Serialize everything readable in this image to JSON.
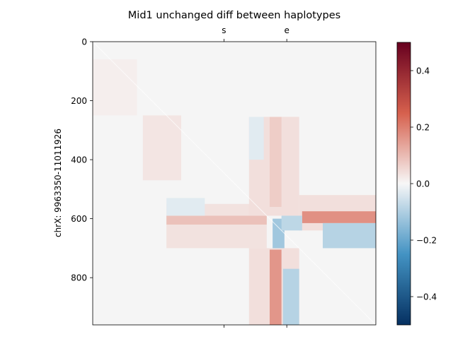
{
  "chart_data": {
    "type": "heatmap",
    "title": "Mid1 unchanged diff between haplotypes",
    "ylabel": "chrX: 9963350-11011926",
    "xlabel": "",
    "matrix_size": 960,
    "yticks": [
      {
        "value": 0,
        "label": "0"
      },
      {
        "value": 200,
        "label": "200"
      },
      {
        "value": 400,
        "label": "400"
      },
      {
        "value": 600,
        "label": "600"
      },
      {
        "value": 800,
        "label": "800"
      }
    ],
    "top_markers": [
      {
        "label": "s",
        "value": 445
      },
      {
        "label": "e",
        "value": 658
      }
    ],
    "bottom_markers": [
      {
        "value": 445
      },
      {
        "value": 658
      }
    ],
    "colorbar": {
      "colormap": "RdBu_r",
      "min": -0.5,
      "max": 0.5,
      "ticks": [
        {
          "value": 0.4,
          "label": "0.4"
        },
        {
          "value": 0.2,
          "label": "0.2"
        },
        {
          "value": 0.0,
          "label": "0.0"
        },
        {
          "value": -0.2,
          "label": "−0.2"
        },
        {
          "value": -0.4,
          "label": "−0.4"
        }
      ]
    },
    "colors": {
      "background_cell": "#f5f5f5",
      "red_strong": "#67001f",
      "red_mid": "#d6604d",
      "white": "#f7f7f7",
      "blue_mid": "#4393c3",
      "blue_strong": "#053061"
    },
    "regions": [
      {
        "r0": 0,
        "r1": 960,
        "c0": 0,
        "c1": 960,
        "v": 0.0
      },
      {
        "r0": 250,
        "r1": 470,
        "c0": 170,
        "c1": 300,
        "v": 0.03
      },
      {
        "r0": 60,
        "r1": 250,
        "c0": 0,
        "c1": 150,
        "v": 0.015
      },
      {
        "r0": 550,
        "r1": 700,
        "c0": 250,
        "c1": 590,
        "v": 0.035
      },
      {
        "r0": 590,
        "r1": 620,
        "c0": 250,
        "c1": 590,
        "v": 0.09
      },
      {
        "r0": 530,
        "r1": 590,
        "c0": 250,
        "c1": 380,
        "v": -0.03
      },
      {
        "r0": 255,
        "r1": 590,
        "c0": 530,
        "c1": 700,
        "v": 0.04
      },
      {
        "r0": 255,
        "r1": 560,
        "c0": 600,
        "c1": 640,
        "v": 0.07
      },
      {
        "r0": 255,
        "r1": 400,
        "c0": 530,
        "c1": 580,
        "v": -0.03
      },
      {
        "r0": 520,
        "r1": 640,
        "c0": 700,
        "c1": 960,
        "v": 0.04
      },
      {
        "r0": 575,
        "r1": 615,
        "c0": 710,
        "c1": 960,
        "v": 0.17
      },
      {
        "r0": 615,
        "r1": 700,
        "c0": 780,
        "c1": 960,
        "v": -0.09
      },
      {
        "r0": 700,
        "r1": 960,
        "c0": 530,
        "c1": 700,
        "v": 0.04
      },
      {
        "r0": 705,
        "r1": 960,
        "c0": 600,
        "c1": 640,
        "v": 0.16
      },
      {
        "r0": 770,
        "r1": 960,
        "c0": 645,
        "c1": 700,
        "v": -0.09
      },
      {
        "r0": 600,
        "r1": 700,
        "c0": 610,
        "c1": 650,
        "v": -0.12
      },
      {
        "r0": 590,
        "r1": 640,
        "c0": 640,
        "c1": 710,
        "v": -0.08
      }
    ]
  }
}
